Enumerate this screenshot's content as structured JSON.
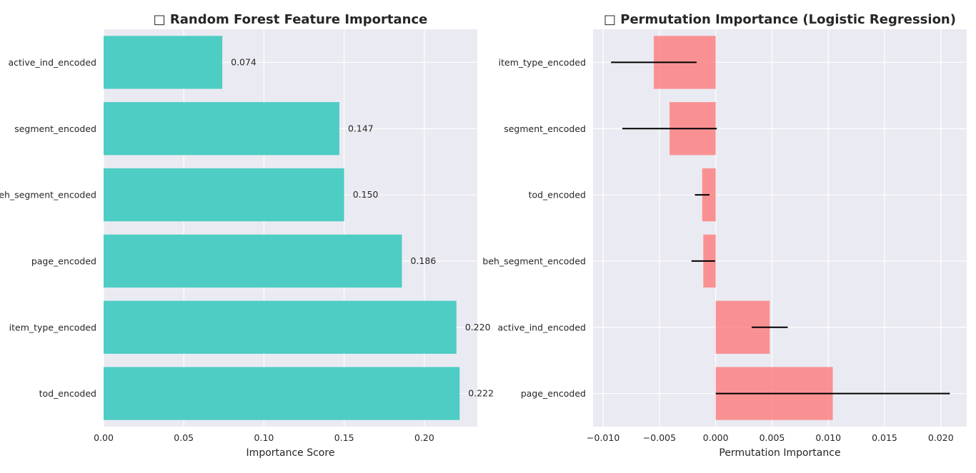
{
  "chart_data": [
    {
      "type": "bar",
      "orientation": "horizontal",
      "title": "□ Random Forest Feature Importance",
      "xlabel": "Importance Score",
      "ylabel": "",
      "categories": [
        "active_ind_encoded",
        "segment_encoded",
        "beh_segment_encoded",
        "page_encoded",
        "item_type_encoded",
        "tod_encoded"
      ],
      "values": [
        0.074,
        0.147,
        0.15,
        0.186,
        0.22,
        0.222
      ],
      "data_labels": [
        "0.074",
        "0.147",
        "0.150",
        "0.186",
        "0.220",
        "0.222"
      ],
      "xlim": [
        0,
        0.233
      ],
      "xticks": [
        0.0,
        0.05,
        0.1,
        0.15,
        0.2
      ],
      "xtick_labels": [
        "0.00",
        "0.05",
        "0.10",
        "0.15",
        "0.20"
      ],
      "color": "#4ecdc4",
      "grid": true
    },
    {
      "type": "bar",
      "orientation": "horizontal",
      "title": "□ Permutation Importance (Logistic Regression)",
      "xlabel": "Permutation Importance",
      "ylabel": "",
      "categories": [
        "item_type_encoded",
        "segment_encoded",
        "tod_encoded",
        "beh_segment_encoded",
        "active_ind_encoded",
        "page_encoded"
      ],
      "values": [
        -0.0055,
        -0.0041,
        -0.0012,
        -0.0011,
        0.0048,
        0.0104
      ],
      "error": [
        0.0038,
        0.0042,
        0.00065,
        0.00105,
        0.0016,
        0.0104
      ],
      "xlim": [
        -0.0109,
        0.0223
      ],
      "xticks": [
        -0.01,
        -0.005,
        0.0,
        0.005,
        0.01,
        0.015,
        0.02
      ],
      "xtick_labels": [
        "−0.010",
        "−0.005",
        "0.000",
        "0.005",
        "0.010",
        "0.015",
        "0.020"
      ],
      "color": "#ff6b6b",
      "bar_opacity": 0.7,
      "error_color": "#000000",
      "grid": true
    }
  ]
}
